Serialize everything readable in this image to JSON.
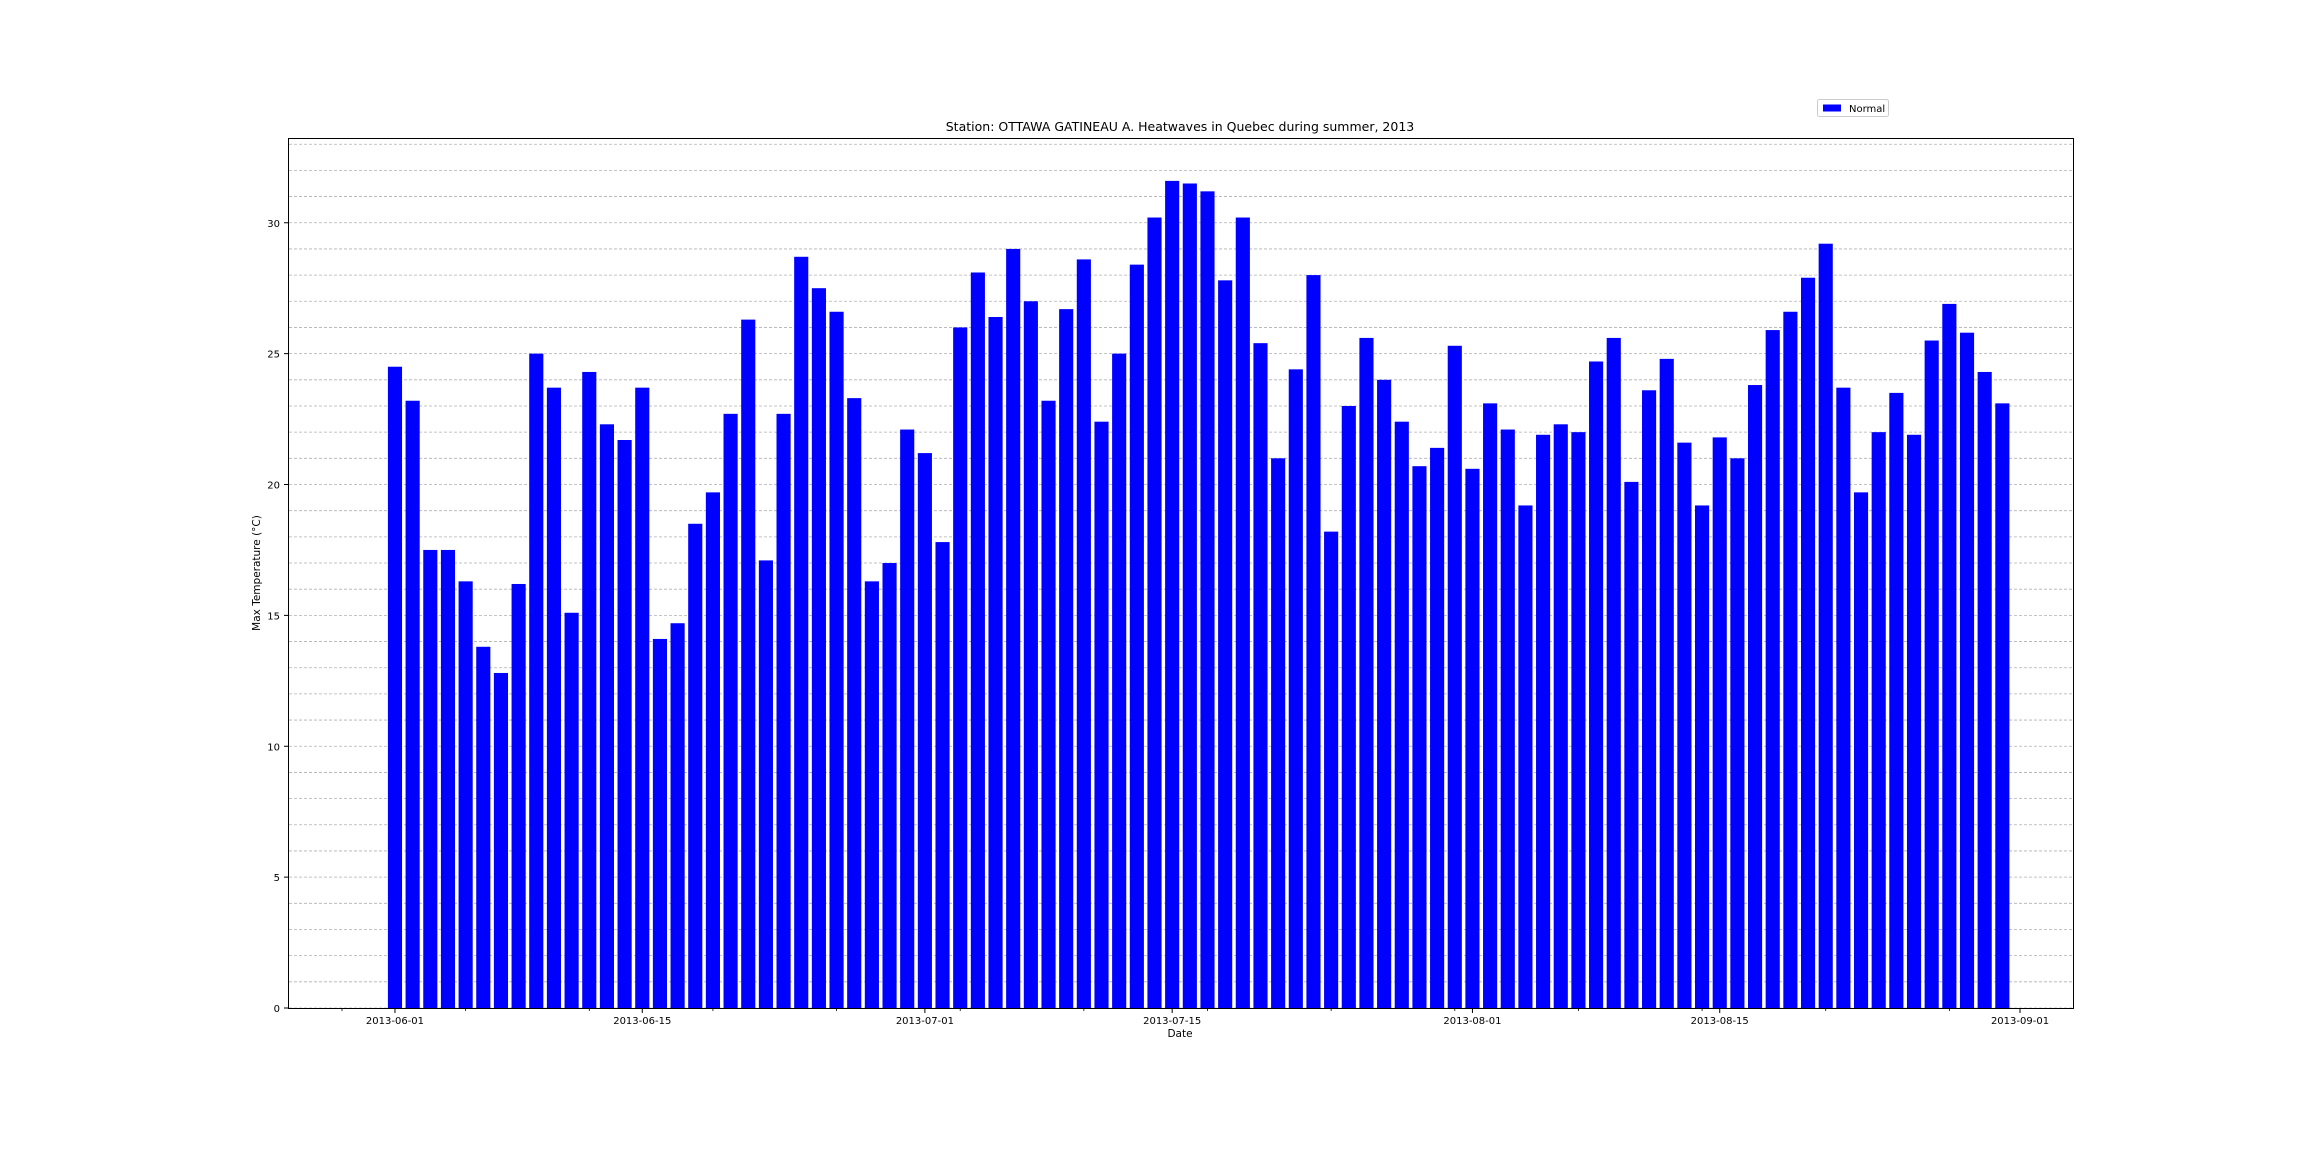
{
  "chart_data": {
    "type": "bar",
    "title": "Station: OTTAWA GATINEAU A. Heatwaves in Quebec during summer, 2013",
    "xlabel": "Date",
    "ylabel": "Max Temperature (°C)",
    "xlim": [
      "2013-05-26",
      "2013-09-04"
    ],
    "ylim": [
      0,
      33.2
    ],
    "y_ticks": [
      0,
      5,
      10,
      15,
      20,
      25,
      30
    ],
    "x_ticks": [
      "2013-06-01",
      "2013-06-15",
      "2013-07-01",
      "2013-07-15",
      "2013-08-01",
      "2013-08-15",
      "2013-09-01"
    ],
    "grid": "horizontal dashed, every 1 °C",
    "legend": {
      "position": "top-right, above plot",
      "entries": [
        "Normal"
      ]
    },
    "start_date": "2013-06-01",
    "series": [
      {
        "name": "Normal",
        "color": "#0000ff",
        "values": [
          24.5,
          23.2,
          17.5,
          17.5,
          16.3,
          13.8,
          12.8,
          16.2,
          25.0,
          23.7,
          15.1,
          24.3,
          22.3,
          21.7,
          23.7,
          14.1,
          14.7,
          18.5,
          19.7,
          22.7,
          26.3,
          17.1,
          22.7,
          28.7,
          27.5,
          26.6,
          23.3,
          16.3,
          17.0,
          22.1,
          21.2,
          17.8,
          26.0,
          28.1,
          26.4,
          29.0,
          27.0,
          23.2,
          26.7,
          28.6,
          22.4,
          25.0,
          28.4,
          30.2,
          31.6,
          31.5,
          31.2,
          27.8,
          30.2,
          25.4,
          21.0,
          24.4,
          28.0,
          18.2,
          23.0,
          25.6,
          24.0,
          22.4,
          20.7,
          21.4,
          25.3,
          20.6,
          23.1,
          22.1,
          19.2,
          21.9,
          22.3,
          22.0,
          24.7,
          25.6,
          20.1,
          23.6,
          24.8,
          21.6,
          19.2,
          21.8,
          21.0,
          23.8,
          25.9,
          26.6,
          27.9,
          29.2,
          23.7,
          19.7,
          22.0,
          23.5,
          21.9,
          25.5,
          26.9,
          25.8,
          24.3,
          23.1
        ]
      }
    ]
  }
}
